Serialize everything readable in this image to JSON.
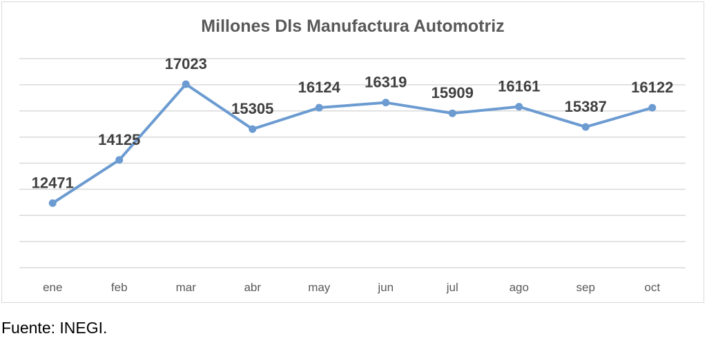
{
  "chart_data": {
    "type": "line",
    "title": "Millones Dls Manufactura Automotriz",
    "xlabel": "",
    "ylabel": "",
    "categories": [
      "ene",
      "feb",
      "mar",
      "abr",
      "may",
      "jun",
      "jul",
      "ago",
      "sep",
      "oct"
    ],
    "series": [
      {
        "name": "Millones Dls Manufactura Automotriz",
        "values": [
          12471,
          14125,
          17023,
          15305,
          16124,
          16319,
          15909,
          16161,
          15387,
          16122
        ],
        "color": "#6b9bd1"
      }
    ],
    "data_labels": [
      "12471",
      "14125",
      "17023",
      "15305",
      "16124",
      "16319",
      "15909",
      "16161",
      "15387",
      "16122"
    ],
    "ylim": [
      10000,
      18000
    ],
    "ygrid_step": 1000,
    "grid": true,
    "legend": "none"
  },
  "source": "Fuente: INEGI."
}
